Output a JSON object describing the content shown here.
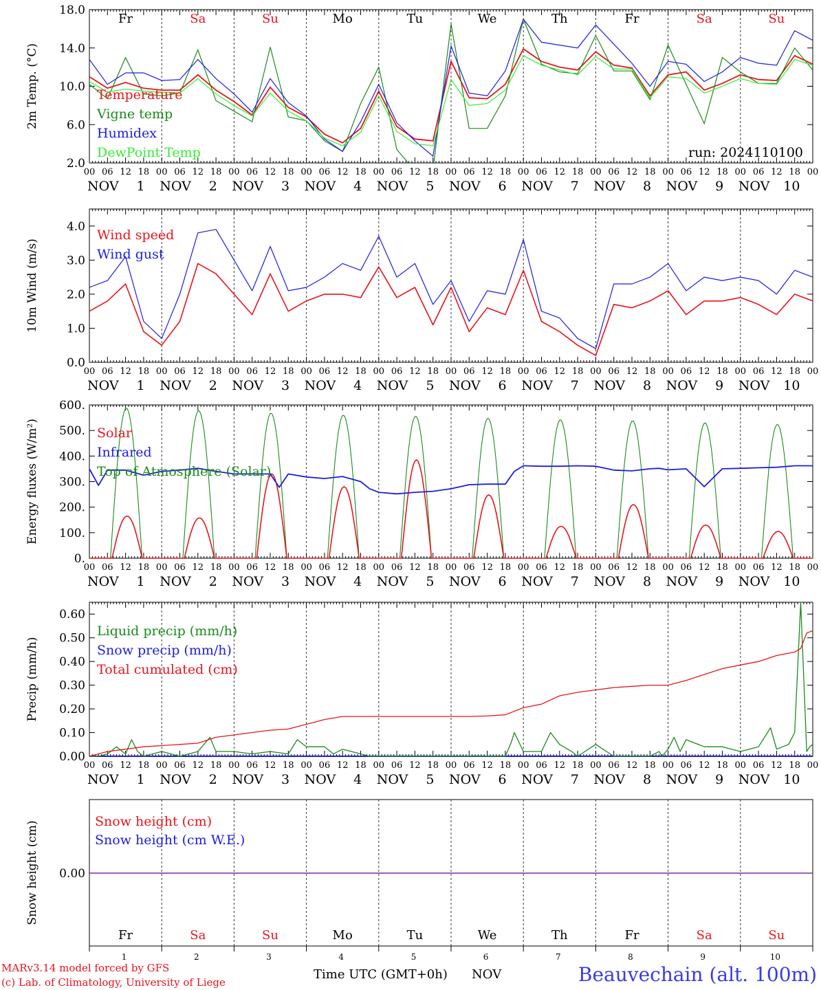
{
  "meteogram": {
    "days": [
      "Fr",
      "Sa",
      "Su",
      "Mo",
      "Tu",
      "We",
      "Th",
      "Fr",
      "Sa",
      "Su"
    ],
    "weekend_days": [
      1,
      2,
      8,
      9
    ],
    "hour_ticks": [
      "00",
      "06",
      "12",
      "18"
    ],
    "end_tick": "00",
    "month": "NOV",
    "day_numbers": [
      "1",
      "2",
      "3",
      "4",
      "5",
      "6",
      "7",
      "8",
      "9",
      "10"
    ],
    "x_title": "Time UTC (GMT+0h)",
    "bottom_month": "NOV",
    "station": "Beauvechain (alt. 100m)",
    "credit_line1": "MARv3.14 model forced by GFS",
    "credit_line2": "(c) Lab. of Climatology, University of Liege",
    "run_label": "run: 2024110100"
  },
  "colors": {
    "red": "#e8141c",
    "green": "#1a8a1a",
    "blue": "#1c1ce0",
    "light_green": "#33ee33",
    "weekend": "#e8141c",
    "credit": "#e8141c",
    "station": "#3a3ae6",
    "purple": "#7a2a9a"
  },
  "chart_data": [
    {
      "type": "line",
      "panel": "temperature",
      "ylabel": "2m Temp. (°C)",
      "ylim": [
        2,
        18
      ],
      "ytick_labels": [
        "2.0",
        "6.0",
        "10.0",
        "14.0",
        "18.0"
      ],
      "x_unit": "hours since 2024-11-01 00 UTC",
      "xlim": [
        0,
        240
      ],
      "series": [
        {
          "name": "Temperature",
          "color": "red",
          "x": [
            0,
            6,
            12,
            18,
            24,
            30,
            36,
            42,
            48,
            54,
            60,
            66,
            72,
            78,
            84,
            90,
            96,
            102,
            108,
            114,
            120,
            126,
            132,
            138,
            144,
            150,
            156,
            162,
            168,
            174,
            180,
            186,
            192,
            198,
            204,
            210,
            216,
            222,
            228,
            234,
            240
          ],
          "y": [
            11.0,
            9.8,
            10.4,
            9.8,
            9.6,
            9.6,
            11.2,
            9.6,
            8.4,
            7.0,
            9.9,
            7.8,
            6.8,
            5.0,
            4.1,
            5.6,
            9.5,
            5.8,
            4.5,
            4.3,
            12.6,
            8.8,
            8.7,
            10.2,
            13.9,
            12.6,
            12.0,
            11.7,
            13.6,
            12.2,
            11.9,
            9.0,
            11.2,
            11.5,
            9.6,
            10.3,
            11.2,
            10.7,
            10.6,
            13.2,
            12.3
          ]
        },
        {
          "name": "Vigne temp",
          "color": "green",
          "x": [
            0,
            6,
            12,
            18,
            24,
            30,
            36,
            42,
            48,
            54,
            60,
            66,
            72,
            78,
            84,
            90,
            96,
            102,
            108,
            114,
            120,
            126,
            132,
            138,
            144,
            150,
            156,
            162,
            168,
            174,
            180,
            186,
            192,
            198,
            204,
            210,
            216,
            222,
            228,
            234,
            240
          ],
          "y": [
            10.2,
            8.7,
            13.0,
            9.2,
            9.0,
            9.3,
            13.8,
            8.5,
            7.4,
            6.3,
            14.1,
            6.8,
            6.4,
            4.3,
            3.2,
            8.2,
            12.0,
            3.4,
            1.2,
            1.3,
            16.5,
            5.6,
            5.6,
            9.0,
            17.0,
            12.3,
            11.5,
            11.3,
            15.3,
            11.6,
            11.6,
            8.6,
            14.3,
            10.2,
            6.1,
            13.0,
            11.5,
            10.3,
            10.3,
            14.0,
            11.7
          ]
        },
        {
          "name": "Humidex",
          "color": "blue",
          "x": [
            0,
            6,
            12,
            18,
            24,
            30,
            36,
            42,
            48,
            54,
            60,
            66,
            72,
            78,
            84,
            90,
            96,
            102,
            108,
            114,
            120,
            126,
            132,
            138,
            144,
            150,
            156,
            162,
            168,
            174,
            180,
            186,
            192,
            198,
            204,
            210,
            216,
            222,
            228,
            234,
            240
          ],
          "y": [
            12.8,
            10.2,
            11.4,
            11.4,
            10.6,
            10.7,
            12.8,
            10.8,
            9.2,
            7.3,
            10.8,
            8.3,
            6.9,
            4.5,
            3.2,
            6.3,
            10.2,
            6.2,
            4.3,
            2.7,
            14.2,
            9.3,
            9.0,
            11.6,
            17.0,
            14.6,
            14.3,
            14.0,
            16.4,
            14.4,
            12.4,
            10.0,
            12.6,
            12.3,
            10.5,
            11.5,
            13.0,
            12.4,
            12.2,
            15.8,
            14.8
          ]
        },
        {
          "name": "DewPoint Temp",
          "color": "light_green",
          "x": [
            0,
            6,
            12,
            18,
            24,
            30,
            36,
            42,
            48,
            54,
            60,
            66,
            72,
            78,
            84,
            90,
            96,
            102,
            108,
            114,
            120,
            126,
            132,
            138,
            144,
            150,
            156,
            162,
            168,
            174,
            180,
            186,
            192,
            198,
            204,
            210,
            216,
            222,
            228,
            234,
            240
          ],
          "y": [
            10.5,
            9.4,
            9.7,
            9.5,
            9.4,
            9.3,
            10.8,
            9.2,
            8.0,
            6.9,
            9.3,
            7.4,
            6.4,
            4.6,
            3.8,
            5.2,
            9.0,
            5.3,
            4.0,
            3.8,
            10.7,
            8.0,
            8.2,
            9.6,
            13.2,
            12.2,
            11.7,
            11.2,
            13.1,
            11.8,
            11.8,
            8.8,
            11.0,
            10.8,
            9.3,
            10.0,
            10.8,
            10.3,
            10.2,
            12.8,
            12.2
          ]
        }
      ]
    },
    {
      "type": "line",
      "panel": "wind",
      "ylabel": "10m Wind (m/s)",
      "ylim": [
        0,
        4.5
      ],
      "ytick_labels": [
        "0.0",
        "1.0",
        "2.0",
        "3.0",
        "4.0"
      ],
      "x_unit": "hours since 2024-11-01 00 UTC",
      "xlim": [
        0,
        240
      ],
      "series": [
        {
          "name": "Wind speed",
          "color": "red",
          "x": [
            0,
            6,
            12,
            18,
            24,
            30,
            36,
            42,
            48,
            54,
            60,
            66,
            72,
            78,
            84,
            90,
            96,
            102,
            108,
            114,
            120,
            126,
            132,
            138,
            144,
            150,
            156,
            162,
            168,
            174,
            180,
            186,
            192,
            198,
            204,
            210,
            216,
            222,
            228,
            234,
            240
          ],
          "y": [
            1.5,
            1.8,
            2.3,
            0.9,
            0.5,
            1.2,
            2.9,
            2.6,
            2.0,
            1.4,
            2.6,
            1.5,
            1.8,
            2.0,
            2.0,
            1.9,
            2.8,
            1.9,
            2.2,
            1.1,
            2.2,
            0.9,
            1.6,
            1.4,
            2.7,
            1.2,
            0.9,
            0.5,
            0.2,
            1.7,
            1.6,
            1.8,
            2.1,
            1.4,
            1.8,
            1.8,
            1.9,
            1.7,
            1.4,
            2.0,
            1.8
          ]
        },
        {
          "name": "Wind gust",
          "color": "blue",
          "x": [
            0,
            6,
            12,
            18,
            24,
            30,
            36,
            42,
            48,
            54,
            60,
            66,
            72,
            78,
            84,
            90,
            96,
            102,
            108,
            114,
            120,
            126,
            132,
            138,
            144,
            150,
            156,
            162,
            168,
            174,
            180,
            186,
            192,
            198,
            204,
            210,
            216,
            222,
            228,
            234,
            240
          ],
          "y": [
            2.2,
            2.4,
            3.1,
            1.2,
            0.7,
            2.0,
            3.8,
            3.9,
            3.0,
            2.1,
            3.4,
            2.1,
            2.2,
            2.5,
            2.9,
            2.7,
            3.7,
            2.5,
            2.9,
            1.7,
            2.4,
            1.2,
            2.1,
            2.0,
            3.6,
            1.5,
            1.3,
            0.7,
            0.4,
            2.3,
            2.3,
            2.5,
            2.9,
            2.1,
            2.5,
            2.4,
            2.5,
            2.4,
            2.0,
            2.7,
            2.5
          ]
        }
      ]
    },
    {
      "type": "line",
      "panel": "energy",
      "ylabel": "Energy fluxes (W/m²)",
      "ylim": [
        0,
        600
      ],
      "ytick_labels": [
        "0.",
        "100.",
        "200.",
        "300.",
        "400.",
        "500.",
        "600."
      ],
      "x_unit": "hours since 2024-11-01 00 UTC",
      "xlim": [
        0,
        240
      ],
      "daily_peaks": {
        "toa": [
          588,
          578,
          568,
          560,
          556,
          548,
          542,
          538,
          530,
          524
        ],
        "solar": [
          165,
          158,
          330,
          280,
          385,
          248,
          125,
          210,
          130,
          105
        ],
        "solar_rise_h": 7.5,
        "solar_set_h": 17.5,
        "toa_rise_h": 7,
        "toa_set_h": 17.5
      },
      "series": [
        {
          "name": "Solar",
          "color": "red"
        },
        {
          "name": "Infrared",
          "color": "blue",
          "x": [
            0,
            3,
            6,
            12,
            18,
            24,
            30,
            36,
            42,
            48,
            54,
            60,
            63,
            66,
            72,
            78,
            84,
            90,
            93,
            96,
            102,
            108,
            114,
            120,
            126,
            132,
            138,
            141,
            144,
            150,
            156,
            162,
            168,
            174,
            180,
            186,
            189,
            192,
            198,
            204,
            210,
            216,
            222,
            228,
            234,
            240
          ],
          "y": [
            350,
            285,
            345,
            345,
            325,
            340,
            345,
            352,
            340,
            330,
            330,
            330,
            278,
            330,
            318,
            312,
            320,
            300,
            272,
            258,
            252,
            258,
            262,
            272,
            288,
            290,
            290,
            340,
            362,
            360,
            360,
            362,
            360,
            345,
            342,
            350,
            352,
            346,
            350,
            280,
            350,
            352,
            354,
            356,
            362,
            362
          ]
        },
        {
          "name": "Top of Atmosphere (Solar)",
          "color": "green"
        }
      ]
    },
    {
      "type": "line",
      "panel": "precip",
      "ylabel": "Precip (mm/h)",
      "ylim": [
        0,
        0.65
      ],
      "ytick_labels": [
        "0.00",
        "0.10",
        "0.20",
        "0.30",
        "0.40",
        "0.50",
        "0.60"
      ],
      "x_unit": "hours since 2024-11-01 00 UTC",
      "xlim": [
        0,
        240
      ],
      "series": [
        {
          "name": "Liquid precip (mm/h)",
          "color": "green",
          "x": [
            0,
            3,
            6,
            9,
            12,
            14,
            16,
            18,
            24,
            30,
            33,
            36,
            40,
            42,
            48,
            54,
            60,
            66,
            69,
            72,
            78,
            81,
            84,
            90,
            93,
            96,
            120,
            126,
            132,
            138,
            140,
            141,
            144,
            150,
            153,
            156,
            160,
            162,
            168,
            174,
            180,
            186,
            189,
            190,
            192,
            194,
            196,
            198,
            204,
            210,
            216,
            222,
            226,
            228,
            232,
            234,
            236,
            238,
            239,
            240
          ],
          "y": [
            0.0,
            0.0,
            0.01,
            0.04,
            0.01,
            0.07,
            0.02,
            0.0,
            0.02,
            0.0,
            0.01,
            0.02,
            0.08,
            0.02,
            0.02,
            0.01,
            0.02,
            0.01,
            0.07,
            0.04,
            0.04,
            0.01,
            0.03,
            0.01,
            0.0,
            0.0,
            0.0,
            0.0,
            0.0,
            0.0,
            0.06,
            0.1,
            0.02,
            0.02,
            0.1,
            0.05,
            0.02,
            0.0,
            0.05,
            0.0,
            0.0,
            0.0,
            0.02,
            0.0,
            0.03,
            0.08,
            0.02,
            0.07,
            0.04,
            0.04,
            0.02,
            0.04,
            0.12,
            0.03,
            0.05,
            0.1,
            0.65,
            0.02,
            0.04,
            0.05
          ]
        },
        {
          "name": "Snow precip (mm/h)",
          "color": "blue",
          "x": [
            0,
            240
          ],
          "y": [
            0.0,
            0.0
          ]
        },
        {
          "name": "Total cumulated (cm)",
          "color": "red",
          "x": [
            0,
            6,
            12,
            18,
            24,
            30,
            36,
            42,
            48,
            54,
            60,
            66,
            72,
            78,
            84,
            90,
            96,
            102,
            108,
            114,
            120,
            126,
            132,
            138,
            144,
            150,
            156,
            162,
            168,
            174,
            180,
            186,
            192,
            198,
            204,
            210,
            216,
            222,
            228,
            234,
            236,
            238,
            240
          ],
          "y": [
            0.0,
            0.02,
            0.03,
            0.04,
            0.045,
            0.05,
            0.055,
            0.08,
            0.09,
            0.1,
            0.11,
            0.115,
            0.135,
            0.155,
            0.168,
            0.168,
            0.168,
            0.168,
            0.168,
            0.168,
            0.168,
            0.168,
            0.17,
            0.175,
            0.205,
            0.22,
            0.255,
            0.27,
            0.28,
            0.29,
            0.295,
            0.3,
            0.3,
            0.32,
            0.345,
            0.37,
            0.385,
            0.4,
            0.425,
            0.44,
            0.455,
            0.52,
            0.53
          ]
        }
      ]
    },
    {
      "type": "line",
      "panel": "snow",
      "ylabel": "Snow height (cm)",
      "ytick_labels": [
        "0.00"
      ],
      "x_unit": "hours since 2024-11-01 00 UTC",
      "xlim": [
        0,
        240
      ],
      "series": [
        {
          "name": "Snow height (cm)",
          "color": "red",
          "x": [
            0,
            240
          ],
          "y": [
            0,
            0
          ]
        },
        {
          "name": "Snow height (cm W.E.)",
          "color": "blue",
          "x": [
            0,
            240
          ],
          "y": [
            0,
            0
          ]
        }
      ]
    }
  ]
}
